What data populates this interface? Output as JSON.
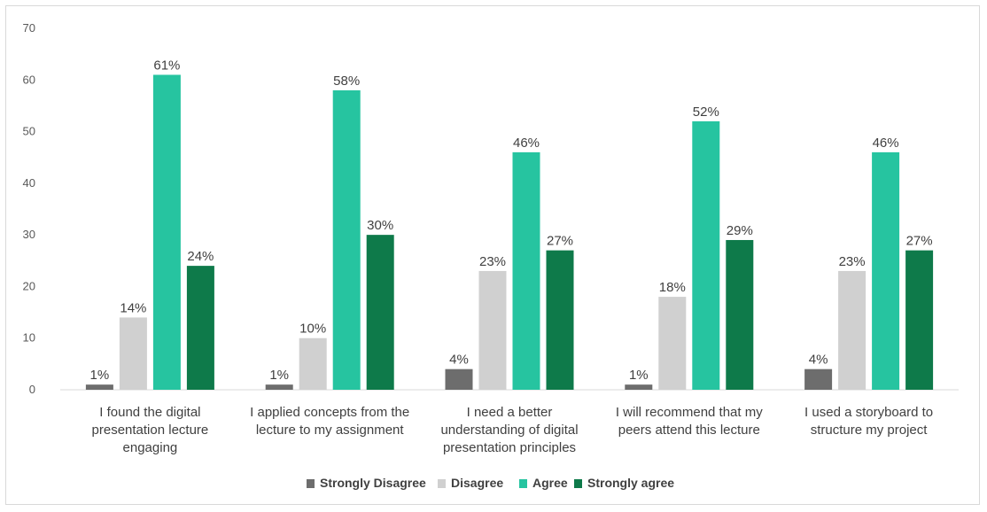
{
  "chart_data": {
    "type": "bar",
    "categories": [
      [
        "I found the digital",
        "presentation lecture",
        "engaging"
      ],
      [
        "I applied concepts from the",
        "lecture to my assignment"
      ],
      [
        "I need a better",
        "understanding of digital",
        "presentation principles"
      ],
      [
        "I will recommend that my",
        "peers attend this lecture"
      ],
      [
        "I used a storyboard to",
        "structure my project"
      ]
    ],
    "series": [
      {
        "name": "Strongly Disagree",
        "color": "#6d6d6d",
        "values": [
          1,
          1,
          4,
          1,
          4
        ],
        "labels": [
          "1%",
          "1%",
          "4%",
          "1%",
          "4%"
        ]
      },
      {
        "name": "Disagree",
        "color": "#d0d0d0",
        "values": [
          14,
          10,
          23,
          18,
          23
        ],
        "labels": [
          "14%",
          "10%",
          "23%",
          "18%",
          "23%"
        ]
      },
      {
        "name": "Agree",
        "color": "#26c4a0",
        "values": [
          61,
          58,
          46,
          52,
          46
        ],
        "labels": [
          "61%",
          "58%",
          "46%",
          "52%",
          "46%"
        ]
      },
      {
        "name": "Strongly agree",
        "color": "#0e7a4a",
        "values": [
          24,
          30,
          27,
          29,
          27
        ],
        "labels": [
          "24%",
          "30%",
          "27%",
          "29%",
          "27%"
        ]
      }
    ],
    "yticks": [
      0,
      10,
      20,
      30,
      40,
      50,
      60,
      70
    ],
    "ylim": [
      0,
      70
    ],
    "grid": false,
    "legend_position": "bottom",
    "title": "",
    "xlabel": "",
    "ylabel": ""
  }
}
